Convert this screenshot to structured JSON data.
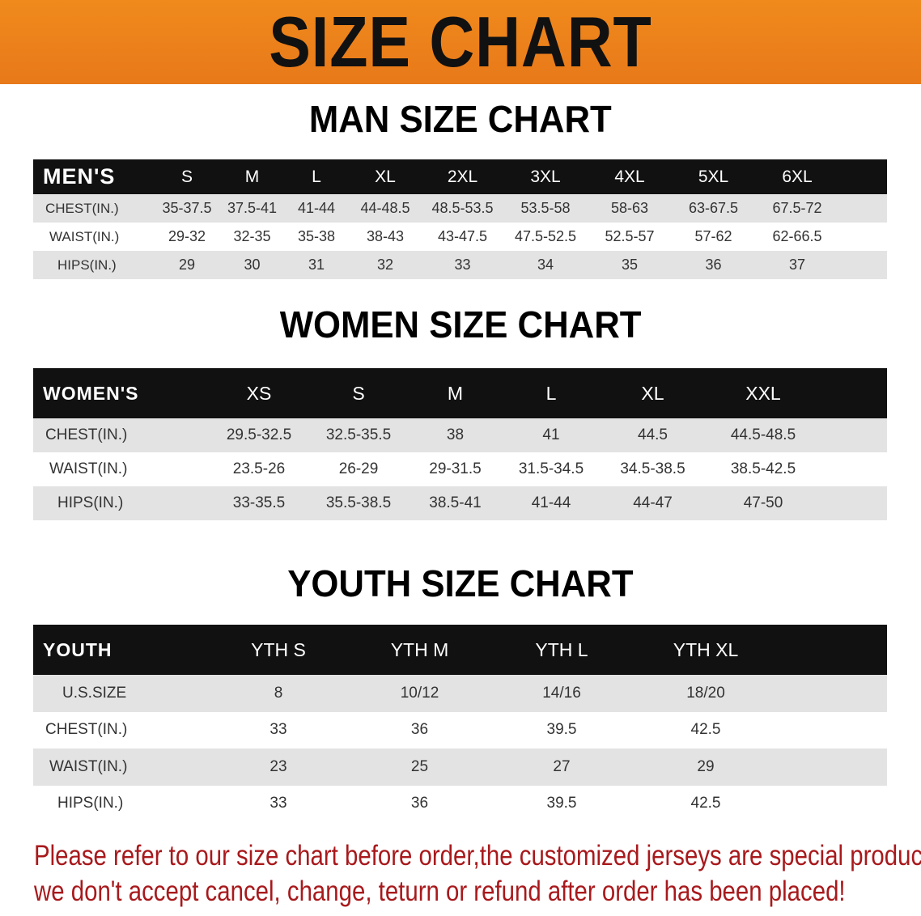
{
  "banner_title": "SIZE CHART",
  "colors": {
    "banner": "#ef841b",
    "header_row": "#111111",
    "note_text": "#a8191c",
    "row_shade": "#e3e3e3"
  },
  "men": {
    "heading": "MAN SIZE CHART",
    "columns": [
      "MEN'S",
      "S",
      "M",
      "L",
      "XL",
      "2XL",
      "3XL",
      "4XL",
      "5XL",
      "6XL",
      ""
    ],
    "rows": [
      [
        "CHEST(IN.)",
        "35-37.5",
        "37.5-41",
        "41-44",
        "44-48.5",
        "48.5-53.5",
        "53.5-58",
        "58-63",
        "63-67.5",
        "67.5-72",
        ""
      ],
      [
        "WAIST(IN.)",
        "29-32",
        "32-35",
        "35-38",
        "38-43",
        "43-47.5",
        "47.5-52.5",
        "52.5-57",
        "57-62",
        "62-66.5",
        ""
      ],
      [
        "HIPS(IN.)",
        "29",
        "30",
        "31",
        "32",
        "33",
        "34",
        "35",
        "36",
        "37",
        ""
      ]
    ]
  },
  "women": {
    "heading": "WOMEN SIZE CHART",
    "columns": [
      "WOMEN'S",
      "XS",
      "S",
      "M",
      "L",
      "XL",
      "XXL",
      ""
    ],
    "rows": [
      [
        "CHEST(IN.)",
        "29.5-32.5",
        "32.5-35.5",
        "38",
        "41",
        "44.5",
        "44.5-48.5",
        ""
      ],
      [
        "WAIST(IN.)",
        "23.5-26",
        "26-29",
        "29-31.5",
        "31.5-34.5",
        "34.5-38.5",
        "38.5-42.5",
        ""
      ],
      [
        "HIPS(IN.)",
        "33-35.5",
        "35.5-38.5",
        "38.5-41",
        "41-44",
        "44-47",
        "47-50",
        ""
      ]
    ]
  },
  "youth": {
    "heading": "YOUTH SIZE CHART",
    "columns": [
      "YOUTH",
      "YTH S",
      "YTH M",
      "YTH L",
      "YTH XL",
      ""
    ],
    "rows": [
      [
        "U.S.SIZE",
        "8",
        "10/12",
        "14/16",
        "18/20",
        ""
      ],
      [
        "CHEST(IN.)",
        "33",
        "36",
        "39.5",
        "42.5",
        ""
      ],
      [
        "WAIST(IN.)",
        "23",
        "25",
        "27",
        "29",
        ""
      ],
      [
        "HIPS(IN.)",
        "33",
        "36",
        "39.5",
        "42.5",
        ""
      ]
    ]
  },
  "note": {
    "line1": "Please refer to our size chart before order,the customized jerseys are special products,",
    "line2": "we don't accept cancel, change, teturn or refund after order has been placed!"
  }
}
